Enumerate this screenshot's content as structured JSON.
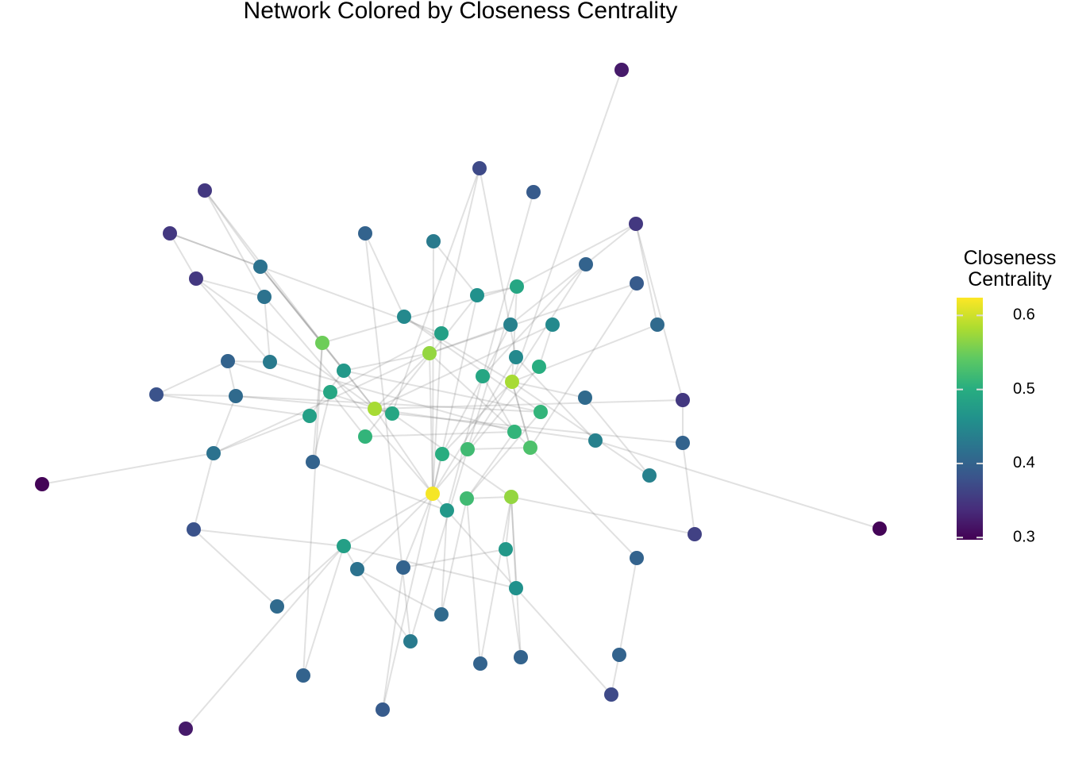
{
  "chart_data": {
    "type": "network",
    "title": "Network Colored by Closeness Centrality",
    "color_label": "Closeness Centrality",
    "colorlim": [
      0.297,
      0.624
    ],
    "colorticks": [
      0.3,
      0.4,
      0.5,
      0.6
    ],
    "colormap": "viridis",
    "values": [
      0.32,
      0.37,
      0.39,
      0.35,
      0.35,
      0.35,
      0.4,
      0.43,
      0.35,
      0.42,
      0.4,
      0.42,
      0.46,
      0.49,
      0.39,
      0.45,
      0.44,
      0.45,
      0.41,
      0.48,
      0.55,
      0.57,
      0.4,
      0.43,
      0.45,
      0.47,
      0.5,
      0.49,
      0.58,
      0.38,
      0.41,
      0.49,
      0.41,
      0.35,
      0.58,
      0.49,
      0.48,
      0.51,
      0.51,
      0.51,
      0.44,
      0.4,
      0.42,
      0.5,
      0.52,
      0.53,
      0.4,
      0.44,
      0.3,
      0.62,
      0.52,
      0.57,
      0.47,
      0.3,
      0.38,
      0.36,
      0.48,
      0.47,
      0.42,
      0.4,
      0.4,
      0.46,
      0.41,
      0.41,
      0.43,
      0.4,
      0.4,
      0.4,
      0.4,
      0.37,
      0.39,
      0.32
    ],
    "edges": [
      [
        0,
        28
      ],
      [
        53,
        40
      ],
      [
        48,
        42
      ],
      [
        71,
        56
      ],
      [
        3,
        9
      ],
      [
        3,
        11
      ],
      [
        3,
        20
      ],
      [
        4,
        8
      ],
      [
        4,
        9
      ],
      [
        4,
        19
      ],
      [
        8,
        11
      ],
      [
        8,
        23
      ],
      [
        8,
        34
      ],
      [
        9,
        34
      ],
      [
        9,
        20
      ],
      [
        9,
        25
      ],
      [
        11,
        23
      ],
      [
        11,
        49
      ],
      [
        22,
        23
      ],
      [
        22,
        30
      ],
      [
        22,
        35
      ],
      [
        29,
        30
      ],
      [
        29,
        22
      ],
      [
        29,
        36
      ],
      [
        30,
        34
      ],
      [
        30,
        42
      ],
      [
        42,
        36
      ],
      [
        42,
        21
      ],
      [
        42,
        54
      ],
      [
        54,
        56
      ],
      [
        54,
        62
      ],
      [
        62,
        56
      ],
      [
        65,
        56
      ],
      [
        65,
        20
      ],
      [
        56,
        49
      ],
      [
        56,
        58
      ],
      [
        56,
        61
      ],
      [
        58,
        64
      ],
      [
        58,
        49
      ],
      [
        59,
        70
      ],
      [
        59,
        49
      ],
      [
        59,
        57
      ],
      [
        70,
        49
      ],
      [
        64,
        44
      ],
      [
        63,
        50
      ],
      [
        63,
        52
      ],
      [
        63,
        58
      ],
      [
        66,
        51
      ],
      [
        66,
        50
      ],
      [
        67,
        51
      ],
      [
        67,
        57
      ],
      [
        61,
        51
      ],
      [
        61,
        69
      ],
      [
        69,
        68
      ],
      [
        68,
        60
      ],
      [
        60,
        39
      ],
      [
        55,
        41
      ],
      [
        55,
        51
      ],
      [
        41,
        33
      ],
      [
        33,
        34
      ],
      [
        41,
        35
      ],
      [
        47,
        28
      ],
      [
        47,
        32
      ],
      [
        40,
        24
      ],
      [
        40,
        34
      ],
      [
        32,
        28
      ],
      [
        18,
        28
      ],
      [
        18,
        5
      ],
      [
        5,
        13
      ],
      [
        5,
        33
      ],
      [
        5,
        16
      ],
      [
        10,
        27
      ],
      [
        10,
        44
      ],
      [
        14,
        21
      ],
      [
        14,
        45
      ],
      [
        17,
        26
      ],
      [
        17,
        34
      ],
      [
        13,
        12
      ],
      [
        13,
        28
      ],
      [
        13,
        44
      ],
      [
        13,
        20
      ],
      [
        12,
        38
      ],
      [
        12,
        49
      ],
      [
        2,
        27
      ],
      [
        1,
        35
      ],
      [
        1,
        19
      ],
      [
        1,
        24
      ],
      [
        6,
        15
      ],
      [
        6,
        64
      ],
      [
        7,
        12
      ],
      [
        7,
        49
      ],
      [
        15,
        37
      ],
      [
        15,
        28
      ],
      [
        16,
        21
      ],
      [
        16,
        43
      ],
      [
        19,
        31
      ],
      [
        19,
        49
      ],
      [
        21,
        49
      ],
      [
        21,
        25
      ],
      [
        21,
        34
      ],
      [
        21,
        39
      ],
      [
        24,
        49
      ],
      [
        26,
        49
      ],
      [
        27,
        52
      ],
      [
        28,
        43
      ],
      [
        28,
        45
      ],
      [
        31,
        46
      ],
      [
        31,
        38
      ],
      [
        34,
        49
      ],
      [
        34,
        35
      ],
      [
        35,
        51
      ],
      [
        36,
        25
      ],
      [
        37,
        50
      ],
      [
        38,
        39
      ],
      [
        39,
        50
      ],
      [
        43,
        49
      ],
      [
        44,
        45
      ],
      [
        45,
        28
      ],
      [
        46,
        20
      ],
      [
        46,
        52
      ],
      [
        49,
        52
      ],
      [
        50,
        51
      ],
      [
        51,
        57
      ],
      [
        52,
        61
      ],
      [
        23,
        39
      ],
      [
        20,
        34
      ],
      [
        25,
        37
      ],
      [
        27,
        39
      ],
      [
        30,
        37
      ]
    ]
  }
}
